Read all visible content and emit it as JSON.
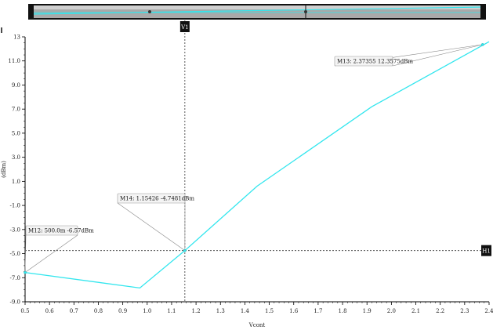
{
  "chart_data": {
    "type": "line",
    "xlabel": "Vcont",
    "ylabel": "(dBm)",
    "xlim": [
      0.5,
      2.4
    ],
    "ylim": [
      -9.0,
      13.0
    ],
    "x_ticks": [
      "0.5",
      "0.6",
      "0.7",
      "0.8",
      "0.9",
      "1.0",
      "1.1",
      "1.2",
      "1.3",
      "1.4",
      "1.5",
      "1.6",
      "1.7",
      "1.8",
      "1.9",
      "2.0",
      "2.1",
      "2.2",
      "2.3",
      "2.4"
    ],
    "y_ticks": [
      "13",
      "11.0",
      "9.0",
      "7.0",
      "5.0",
      "3.0",
      "1.0",
      "-1.0",
      "-3.0",
      "-5.0",
      "-7.0",
      "-9.0"
    ],
    "series": [
      {
        "color": "#33e6ee",
        "x": [
          0.5,
          0.97,
          1.15426,
          1.45,
          1.92,
          2.4
        ],
        "y": [
          -6.57,
          -7.85,
          -4.7481,
          0.6,
          7.2,
          12.6
        ]
      }
    ],
    "markers": [
      {
        "id": "M12",
        "label": "M12: 500.0m -6.57dBm",
        "x": 0.5,
        "y": -6.57
      },
      {
        "id": "M14",
        "label": "M14: 1.15426 -4.7481dBm",
        "x": 1.15426,
        "y": -4.7481
      },
      {
        "id": "M13",
        "label": "M13: 2.37355 12.3575dBm",
        "x": 2.37355,
        "y": 12.3575
      }
    ],
    "cursors": {
      "vertical": {
        "label": "V1",
        "x": 1.15426
      },
      "horizontal": {
        "label": "H1",
        "y": -4.7481
      }
    },
    "grid": false,
    "legend": "none"
  }
}
